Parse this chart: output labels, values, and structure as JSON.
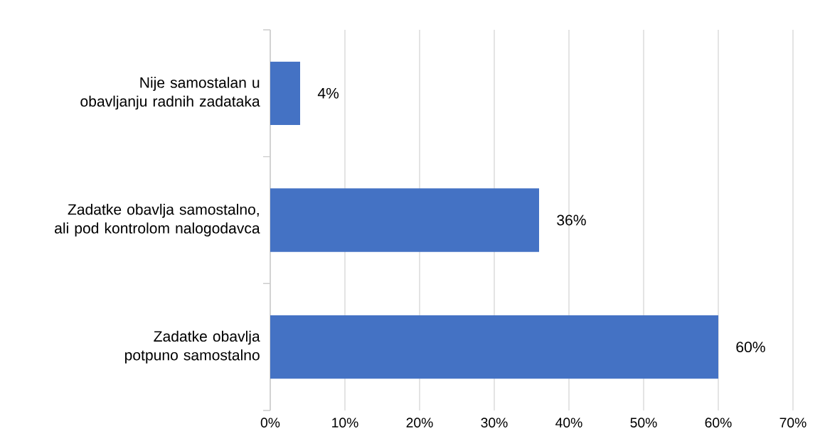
{
  "chart_data": {
    "type": "bar",
    "orientation": "horizontal",
    "categories": [
      "Nije samostalan u obavljanju radnih zadataka",
      "Zadatke obavlja samostalno, ali pod kontrolom nalogodavca",
      "Zadatke obavlja potpuno samostalno"
    ],
    "values": [
      4,
      36,
      60
    ],
    "color": "#4472c4",
    "value_labels": [
      "4%",
      "36%",
      "60%"
    ],
    "xlim": [
      0,
      70
    ],
    "xticks": [
      {
        "value": 0,
        "label": "0%"
      },
      {
        "value": 10,
        "label": "10%"
      },
      {
        "value": 20,
        "label": "20%"
      },
      {
        "value": 30,
        "label": "30%"
      },
      {
        "value": 40,
        "label": "40%"
      },
      {
        "value": 50,
        "label": "50%"
      },
      {
        "value": 60,
        "label": "60%"
      },
      {
        "value": 70,
        "label": "70%"
      }
    ],
    "grid": "x"
  }
}
